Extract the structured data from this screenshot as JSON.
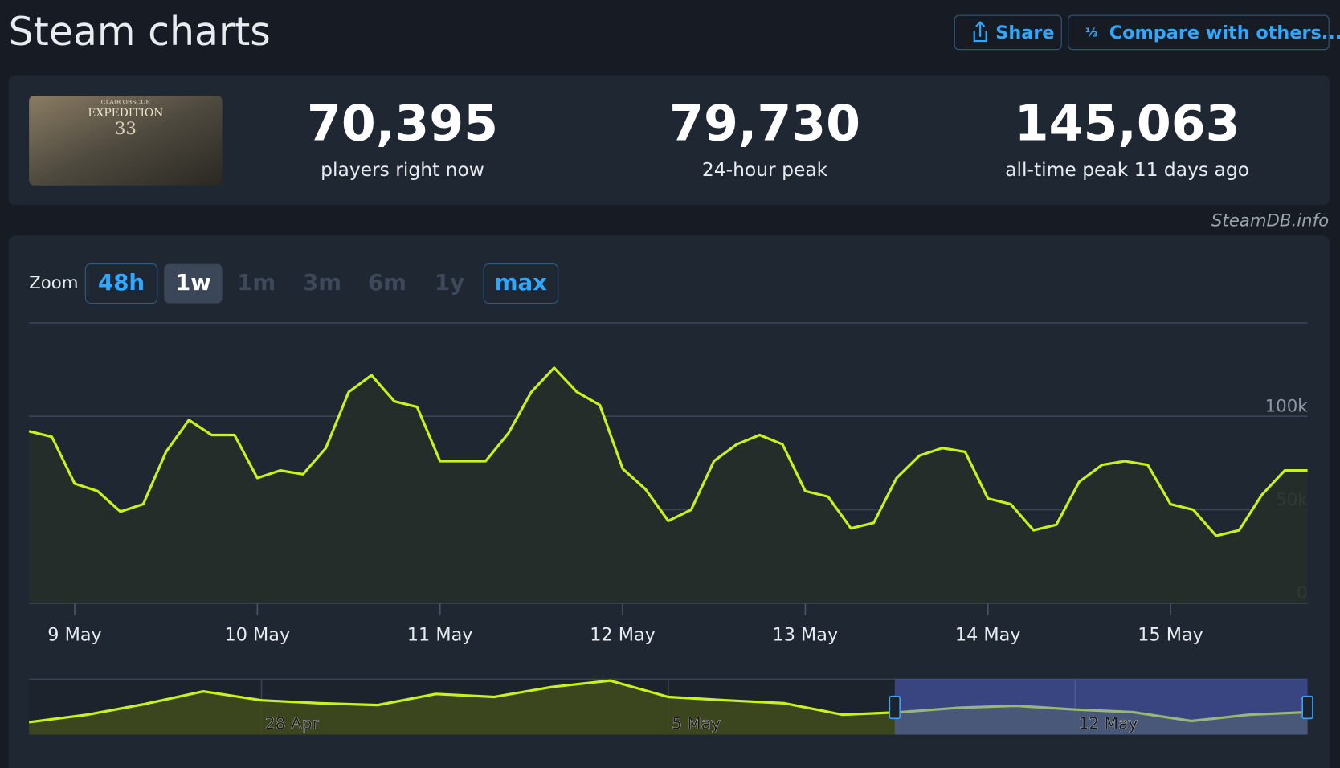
{
  "header": {
    "title": "Steam charts",
    "buttons": [
      "Share",
      "Compare with others..."
    ]
  },
  "game_art": {
    "subtitle": "CLAIR OBSCUR",
    "title": "EXPEDITION",
    "number": "33"
  },
  "stats": [
    {
      "value": "70,395",
      "label": "players right now"
    },
    {
      "value": "79,730",
      "label": "24-hour peak"
    },
    {
      "value": "145,063",
      "label": "all-time peak 11 days ago"
    }
  ],
  "credit": "SteamDB.info",
  "zoom": {
    "label": "Zoom",
    "options": [
      "48h",
      "1w",
      "1m",
      "3m",
      "6m",
      "1y",
      "max"
    ]
  },
  "chart_data": [
    {
      "type": "line",
      "color": "#c8f21c",
      "grid": true,
      "categories": [
        null,
        null,
        "9 May",
        null,
        null,
        null,
        null,
        null,
        null,
        null,
        "10 May",
        null,
        null,
        null,
        null,
        null,
        null,
        null,
        "11 May",
        null,
        null,
        null,
        null,
        null,
        null,
        null,
        "12 May",
        null,
        null,
        null,
        null,
        null,
        null,
        null,
        "13 May",
        null,
        null,
        null,
        null,
        null,
        null,
        null,
        "14 May",
        null,
        null,
        null,
        null,
        null,
        null,
        null,
        "15 May",
        null,
        null,
        null,
        null,
        null,
        null
      ],
      "values": [
        92000,
        89000,
        64000,
        60000,
        49000,
        53000,
        81000,
        98000,
        90000,
        90000,
        67000,
        71000,
        69000,
        83000,
        113000,
        122000,
        108000,
        105000,
        76000,
        76000,
        76000,
        91000,
        113000,
        126000,
        113000,
        106000,
        72000,
        61000,
        44000,
        50000,
        76000,
        85000,
        90000,
        85000,
        60000,
        57000,
        40000,
        43000,
        67000,
        79000,
        83000,
        81000,
        56000,
        53000,
        39000,
        42000,
        65000,
        74000,
        76000,
        74000,
        53000,
        50000,
        36000,
        39000,
        58000,
        71000,
        71000
      ],
      "ylim": [
        0,
        150000
      ],
      "yticks": [
        {
          "value": 0,
          "label": "0"
        },
        {
          "value": 50000,
          "label": "50k"
        },
        {
          "value": 100000,
          "label": "100k"
        }
      ]
    },
    {
      "type": "area",
      "color": "#c8f21c",
      "categories": [
        null,
        null,
        null,
        null,
        "28 Apr",
        null,
        null,
        null,
        null,
        null,
        null,
        "5 May",
        null,
        null,
        null,
        null,
        null,
        null,
        "12 May",
        null,
        null,
        null,
        null
      ],
      "values": [
        34000,
        54000,
        83000,
        117000,
        93000,
        85000,
        80000,
        110000,
        102000,
        129000,
        146000,
        102000,
        93000,
        85000,
        54000,
        61000,
        73000,
        78000,
        68000,
        61000,
        37000,
        54000,
        61000
      ],
      "ylim": [
        0,
        150000
      ]
    }
  ]
}
